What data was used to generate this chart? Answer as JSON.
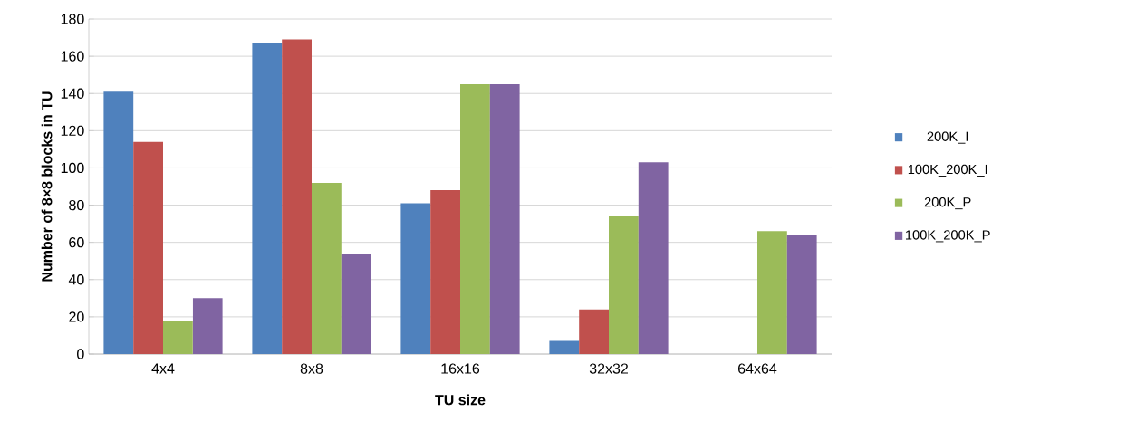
{
  "chart_data": {
    "type": "bar",
    "xlabel": "TU size",
    "ylabel": "Number of 8×8 blocks in TU",
    "categories": [
      "4x4",
      "8x8",
      "16x16",
      "32x32",
      "64x64"
    ],
    "series": [
      {
        "name": "200K_I",
        "color": "#4f81bd",
        "values": [
          141,
          167,
          81,
          7,
          0
        ]
      },
      {
        "name": "100K_200K_I",
        "color": "#c0504d",
        "values": [
          114,
          169,
          88,
          24,
          0
        ]
      },
      {
        "name": "200K_P",
        "color": "#9bbb59",
        "values": [
          18,
          92,
          145,
          74,
          66
        ]
      },
      {
        "name": "100K_200K_P",
        "color": "#8064a2",
        "values": [
          30,
          54,
          145,
          103,
          64
        ]
      }
    ],
    "ylim": [
      0,
      180
    ],
    "yticks": [
      0,
      20,
      40,
      60,
      80,
      100,
      120,
      140,
      160,
      180
    ],
    "grid": "y",
    "legend": "right"
  }
}
